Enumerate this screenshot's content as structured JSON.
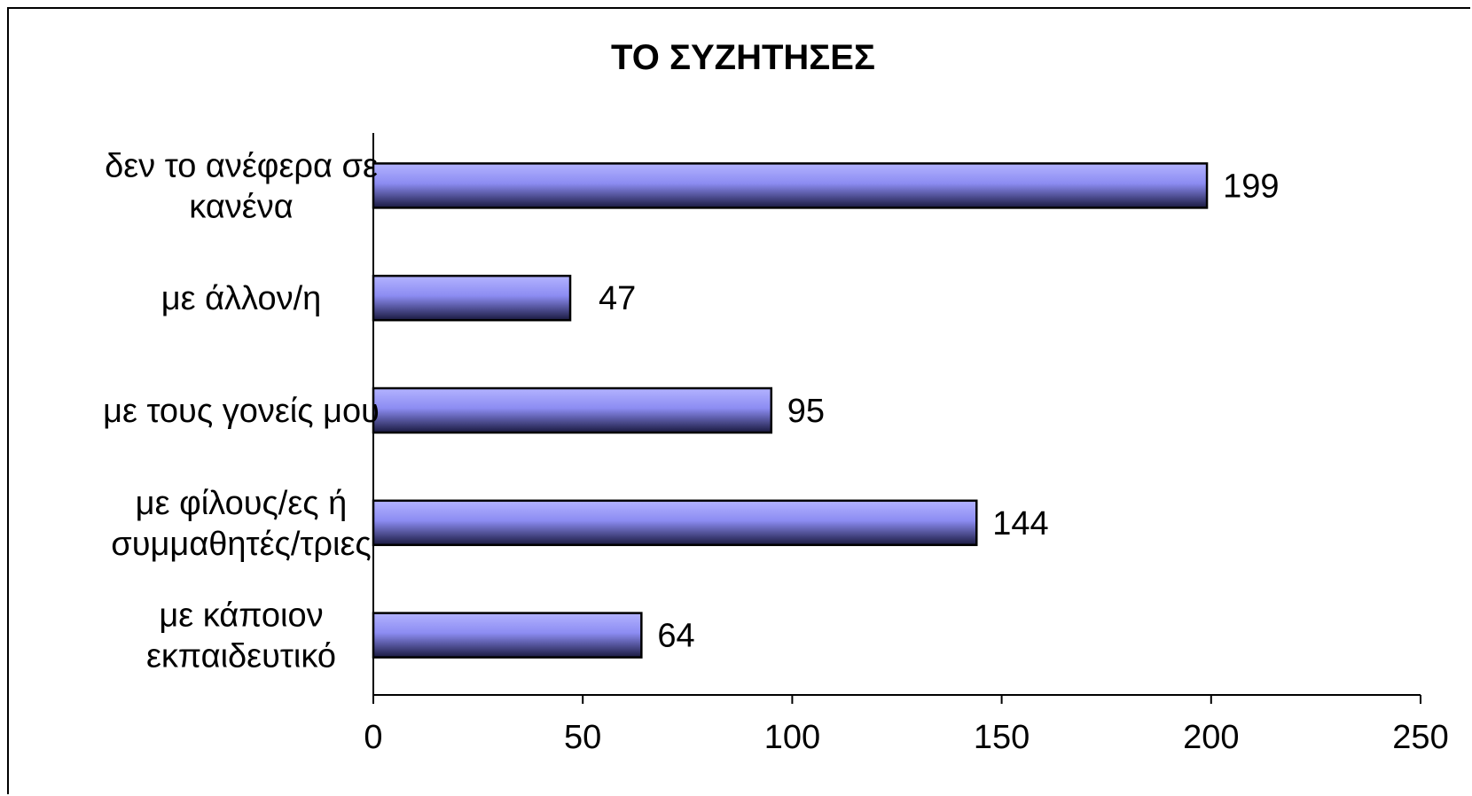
{
  "chart_data": {
    "type": "bar",
    "orientation": "horizontal",
    "title": "ΤΟ ΣΥΖΗΤΗΣΕΣ",
    "categories": [
      [
        "δεν το ανέφερα σε",
        "κανένα"
      ],
      [
        "με άλλον/η"
      ],
      [
        "με τους γονείς μου"
      ],
      [
        "με φίλους/ες ή",
        "συμμαθητές/τριες"
      ],
      [
        "με κάποιον",
        "εκπαιδευτικό"
      ]
    ],
    "values": [
      199,
      47,
      95,
      144,
      64
    ],
    "xlim": [
      0,
      250
    ],
    "xticks": [
      0,
      50,
      100,
      150,
      200,
      250
    ],
    "grid": false,
    "legend": "none",
    "bar_color_light": "#b3b3ff",
    "bar_color_mid": "#8c8cf2",
    "bar_color_dark": "#1a1a40"
  }
}
